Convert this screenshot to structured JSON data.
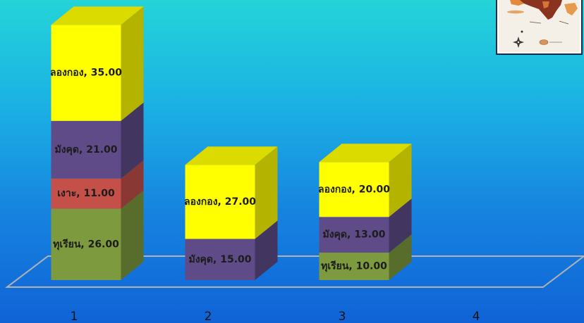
{
  "theme": {
    "background_stops": [
      "#24d4d8",
      "#1bb0e4",
      "#1682df",
      "#1063d6"
    ],
    "floor_color": "#b2b2b2"
  },
  "decorations": {
    "map_image": "map-thumbnail",
    "compass": "compass-rose-icon"
  },
  "chart_data": {
    "type": "bar",
    "stacked": true,
    "three_d": true,
    "categories": [
      "1",
      "2",
      "3",
      "4"
    ],
    "series": [
      {
        "name": "ทุเรียน",
        "color": "#7e9a3e",
        "values": [
          26.0,
          null,
          10.0,
          null
        ]
      },
      {
        "name": "เงาะ",
        "color": "#c5504a",
        "values": [
          11.0,
          null,
          null,
          null
        ]
      },
      {
        "name": "มังคุด",
        "color": "#5e4b88",
        "values": [
          21.0,
          15.0,
          13.0,
          null
        ]
      },
      {
        "name": "ลองกอง",
        "color": "#ffff00",
        "values": [
          35.0,
          27.0,
          20.0,
          null
        ]
      }
    ],
    "ylim": [
      0,
      100
    ],
    "y_axis_visible": false,
    "grid": false,
    "legend": false,
    "data_labels": true
  }
}
